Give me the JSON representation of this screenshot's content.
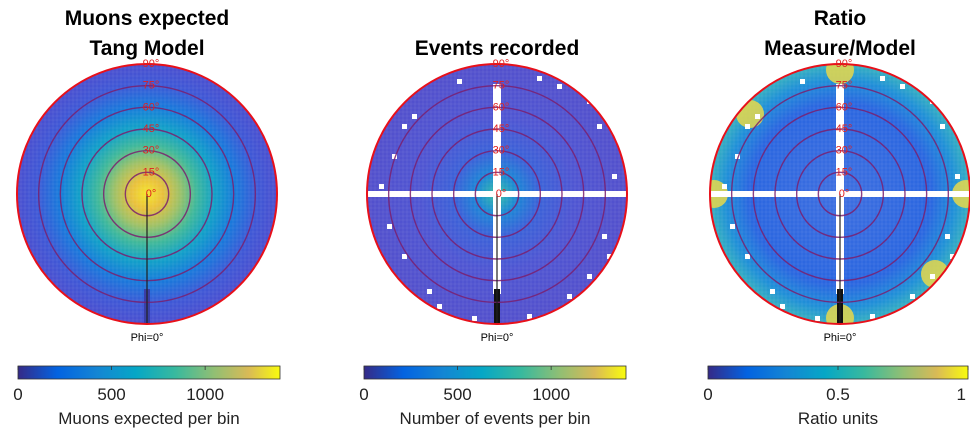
{
  "chart_data": [
    {
      "type": "heatmap",
      "subtype": "polar",
      "title": [
        "Muons expected",
        "Tang Model"
      ],
      "zenith_ring_labels": [
        "0°",
        "15°",
        "30°",
        "45°",
        "60°",
        "75°",
        "90°"
      ],
      "azimuth_label": "Phi=0°",
      "colorbar": {
        "label": "Muons expected per bin",
        "range": [
          0,
          1400
        ],
        "ticks": [
          "0",
          "500",
          "1000"
        ],
        "tick_values": [
          0,
          500,
          1000
        ]
      },
      "peak_value": 1300,
      "colormap": "parula"
    },
    {
      "type": "heatmap",
      "subtype": "polar",
      "title": [
        "Events recorded"
      ],
      "zenith_ring_labels": [
        "0°",
        "15°",
        "30°",
        "45°",
        "60°",
        "75°",
        "90°"
      ],
      "azimuth_label": "Phi=0°",
      "colorbar": {
        "label": "Number of events per bin",
        "range": [
          0,
          1400
        ],
        "ticks": [
          "0",
          "500",
          "1000"
        ],
        "tick_values": [
          0,
          500,
          1000
        ]
      },
      "peak_value": 1300,
      "colormap": "parula"
    },
    {
      "type": "heatmap",
      "subtype": "polar",
      "title": [
        "Ratio",
        "Measure/Model"
      ],
      "zenith_ring_labels": [
        "0°",
        "15°",
        "30°",
        "45°",
        "60°",
        "75°",
        "90°"
      ],
      "azimuth_label": "Phi=0°",
      "colorbar": {
        "label": "Ratio units",
        "range": [
          0,
          1
        ],
        "ticks": [
          "0",
          "0.5",
          "1"
        ],
        "tick_values": [
          0,
          0.5,
          1
        ]
      },
      "colormap": "parula"
    }
  ],
  "colors": {
    "circle": "#e8101a",
    "ring": "#7a1e6e",
    "axis_label": "#e02020"
  }
}
